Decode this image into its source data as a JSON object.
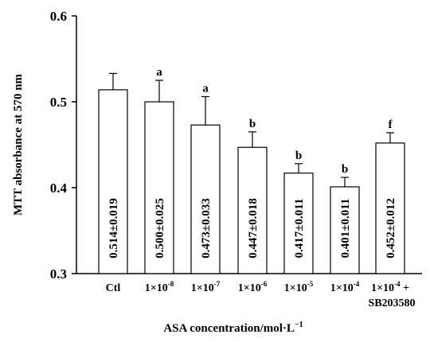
{
  "chart_data": {
    "type": "bar",
    "xlabel": "ASA concentration/mol·L",
    "xlabel_sup": "−1",
    "ylabel": "MTT absorbance at 570 nm",
    "ylim": [
      0.3,
      0.6
    ],
    "yticks": [
      "0.3",
      "0.4",
      "0.5",
      "0.6"
    ],
    "ytick_values": [
      0.3,
      0.4,
      0.5,
      0.6
    ],
    "grid": false,
    "categories": [
      {
        "base": "Ctl",
        "sup": "",
        "line2": ""
      },
      {
        "base": "1×10",
        "sup": "-8",
        "line2": ""
      },
      {
        "base": "1×10",
        "sup": "-7",
        "line2": ""
      },
      {
        "base": "1×10",
        "sup": "-6",
        "line2": ""
      },
      {
        "base": "1×10",
        "sup": "-5",
        "line2": ""
      },
      {
        "base": "1×10",
        "sup": "-4",
        "line2": ""
      },
      {
        "base": "1×10",
        "sup": "-4",
        "tail": " +",
        "line2": "SB203580"
      }
    ],
    "values": [
      0.514,
      0.5,
      0.473,
      0.447,
      0.417,
      0.401,
      0.452
    ],
    "errors": [
      0.019,
      0.025,
      0.033,
      0.018,
      0.011,
      0.011,
      0.012
    ],
    "bar_labels": [
      "0.514±0.019",
      "0.500±0.025",
      "0.473±0.033",
      "0.447±0.018",
      "0.417±0.011",
      "0.401±0.011",
      "0.452±0.012"
    ],
    "significance": [
      "",
      "a",
      "a",
      "b",
      "b",
      "b",
      "f"
    ]
  }
}
